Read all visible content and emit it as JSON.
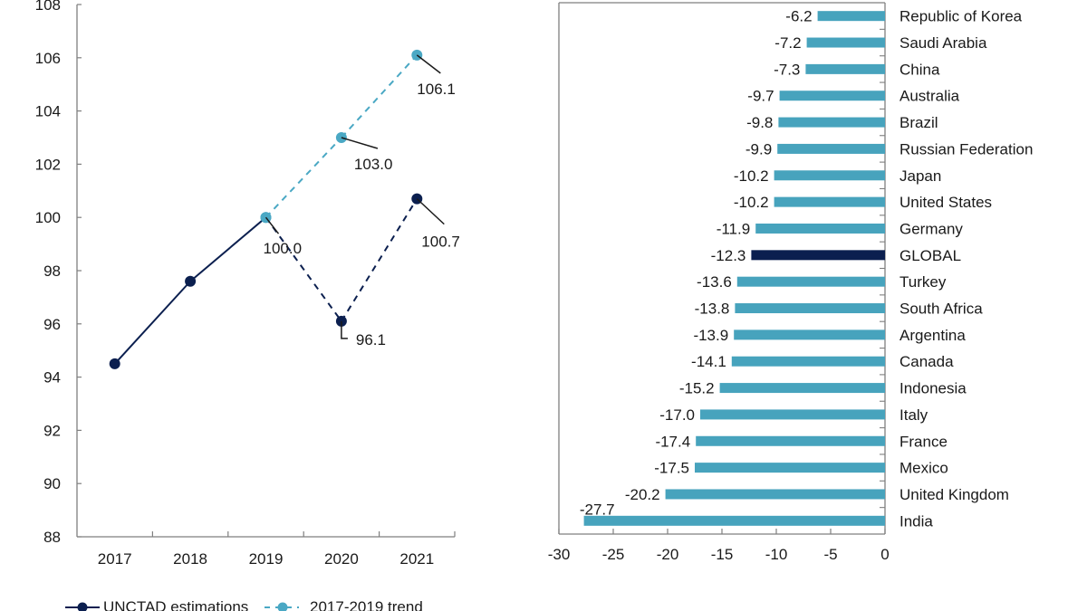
{
  "colors": {
    "estimation": "#0b1f4f",
    "trend": "#4aa8c4",
    "bar": "#47a3bd",
    "global_bar": "#0b1f4f",
    "axis": "#7f7f7f",
    "leader": "#1a1a1a"
  },
  "chart_data": [
    {
      "type": "line",
      "title": "",
      "xlabel": "",
      "ylabel": "",
      "categories": [
        "2017",
        "2018",
        "2019",
        "2020",
        "2021"
      ],
      "ylim": [
        88,
        108
      ],
      "yticks": [
        88,
        90,
        92,
        94,
        96,
        98,
        100,
        102,
        104,
        106,
        108
      ],
      "grid": false,
      "legend_position": "bottom",
      "series": [
        {
          "name": "UNCTAD estimations",
          "style": "solid-then-dashed",
          "dashed_from": "2019",
          "values": [
            94.5,
            97.6,
            100.0,
            96.1,
            100.7
          ],
          "labels": [
            null,
            null,
            "100.0",
            "96.1",
            "100.7"
          ]
        },
        {
          "name": "2017-2019 trend",
          "style": "dashed",
          "values": [
            null,
            null,
            100.0,
            103.0,
            106.1
          ],
          "labels": [
            null,
            null,
            null,
            "103.0",
            "106.1"
          ]
        }
      ]
    },
    {
      "type": "bar",
      "orientation": "horizontal",
      "title": "",
      "xlabel": "",
      "ylabel": "",
      "xlim": [
        -30,
        0
      ],
      "xticks": [
        -30,
        -25,
        -20,
        -15,
        -10,
        -5,
        0
      ],
      "grid": false,
      "categories": [
        "Republic of Korea",
        "Saudi Arabia",
        "China",
        "Australia",
        "Brazil",
        "Russian Federation",
        "Japan",
        "United States",
        "Germany",
        "GLOBAL",
        "Turkey",
        "South Africa",
        "Argentina",
        "Canada",
        "Indonesia",
        "Italy",
        "France",
        "Mexico",
        "United Kingdom",
        "India"
      ],
      "values": [
        -6.2,
        -7.2,
        -7.3,
        -9.7,
        -9.8,
        -9.9,
        -10.2,
        -10.2,
        -11.9,
        -12.3,
        -13.6,
        -13.8,
        -13.9,
        -14.1,
        -15.2,
        -17.0,
        -17.4,
        -17.5,
        -20.2,
        -27.7
      ],
      "labels": [
        "-6.2",
        "-7.2",
        "-7.3",
        "-9.7",
        "-9.8",
        "-9.9",
        "-10.2",
        "-10.2",
        "-11.9",
        "-12.3",
        "-13.6",
        "-13.8",
        "-13.9",
        "-14.1",
        "-15.2",
        "-17.0",
        "-17.4",
        "-17.5",
        "-20.2",
        "-27.7"
      ],
      "highlight": "GLOBAL"
    }
  ]
}
